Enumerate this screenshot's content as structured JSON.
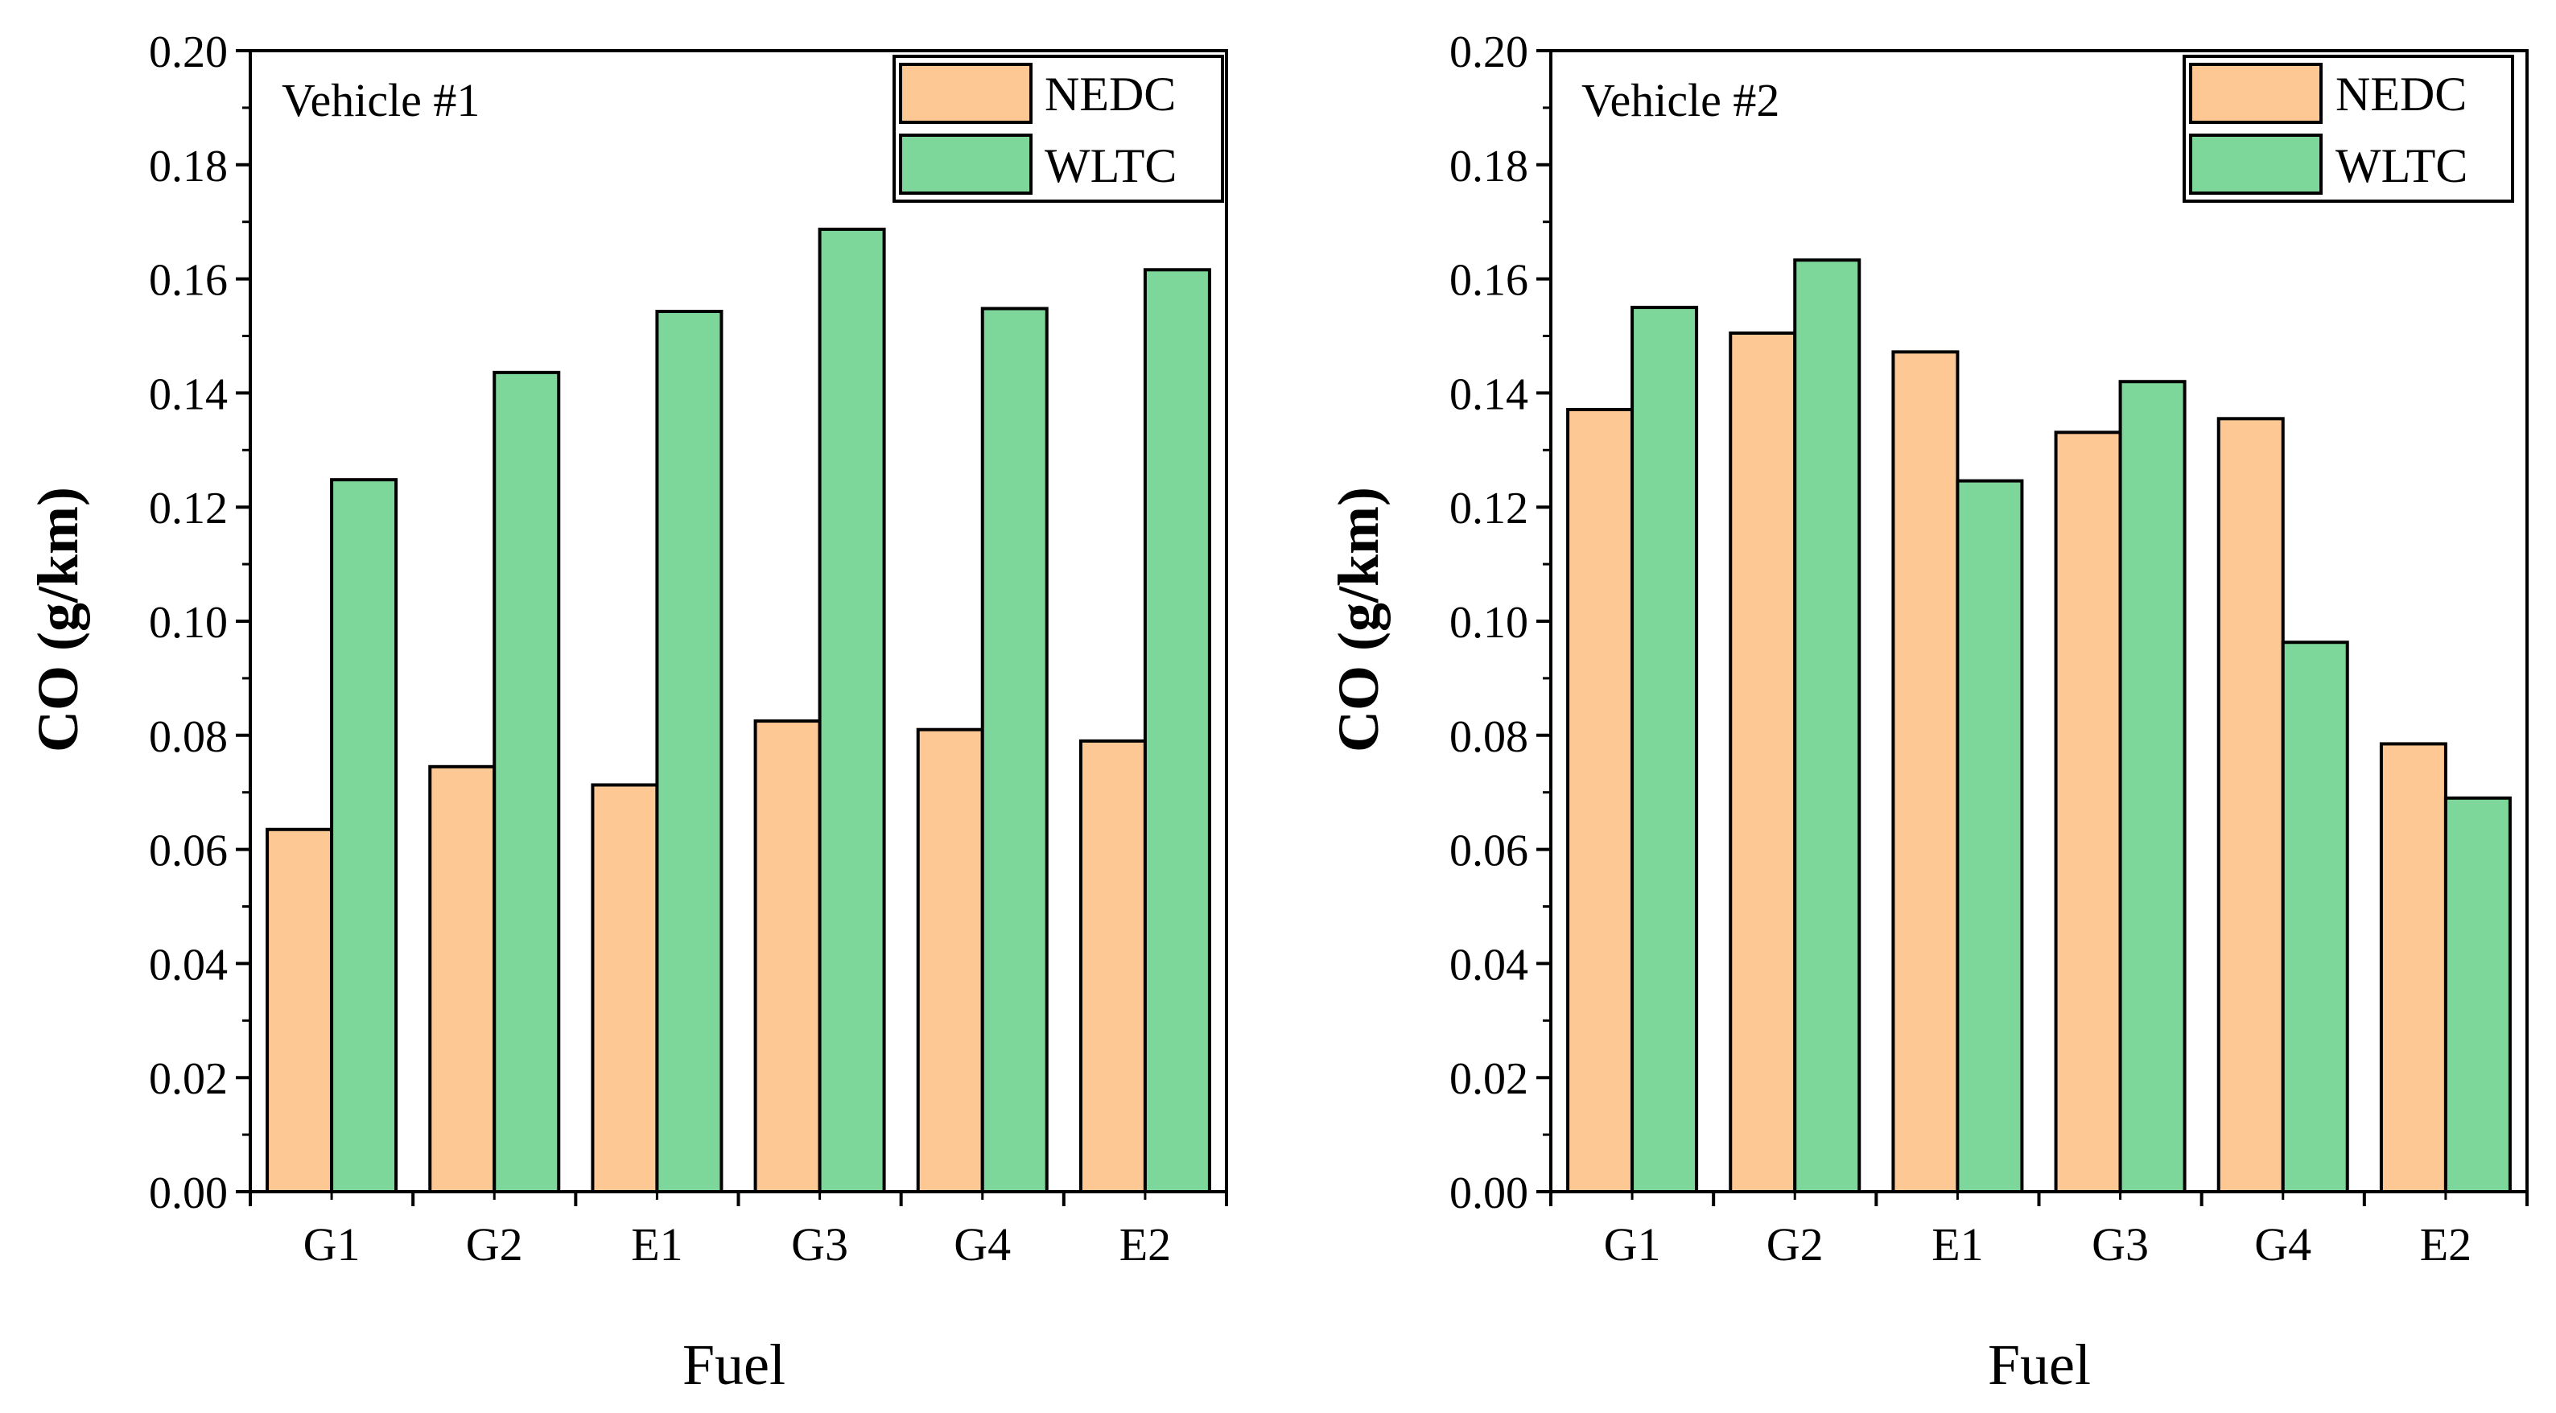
{
  "chart_data": [
    {
      "type": "bar",
      "annotation": "Vehicle #1",
      "categories": [
        "G1",
        "G2",
        "E1",
        "G3",
        "G4",
        "E2"
      ],
      "series": [
        {
          "name": "NEDC",
          "values": [
            0.0635,
            0.0745,
            0.0713,
            0.0825,
            0.081,
            0.079
          ]
        },
        {
          "name": "WLTC",
          "values": [
            0.1248,
            0.1436,
            0.1543,
            0.1687,
            0.1548,
            0.1616
          ]
        }
      ],
      "xlabel": "Fuel",
      "ylabel": "CO (g/km)",
      "ylim": [
        0,
        0.2
      ],
      "yticks": [
        "0.00",
        "0.02",
        "0.04",
        "0.06",
        "0.08",
        "0.10",
        "0.12",
        "0.14",
        "0.16",
        "0.18",
        "0.20"
      ],
      "grid": false,
      "legend_position": "top-right"
    },
    {
      "type": "bar",
      "annotation": "Vehicle #2",
      "categories": [
        "G1",
        "G2",
        "E1",
        "G3",
        "G4",
        "E2"
      ],
      "series": [
        {
          "name": "NEDC",
          "values": [
            0.1371,
            0.1505,
            0.1472,
            0.1331,
            0.1355,
            0.0785
          ]
        },
        {
          "name": "WLTC",
          "values": [
            0.155,
            0.1633,
            0.1246,
            0.142,
            0.0963,
            0.069
          ]
        }
      ],
      "xlabel": "Fuel",
      "ylabel": "CO (g/km)",
      "ylim": [
        0,
        0.2
      ],
      "yticks": [
        "0.00",
        "0.02",
        "0.04",
        "0.06",
        "0.08",
        "0.10",
        "0.12",
        "0.14",
        "0.16",
        "0.18",
        "0.20"
      ],
      "grid": false,
      "legend_position": "top-right"
    }
  ],
  "colors": {
    "NEDC": "#FDC894",
    "WLTC": "#7ED79A"
  }
}
